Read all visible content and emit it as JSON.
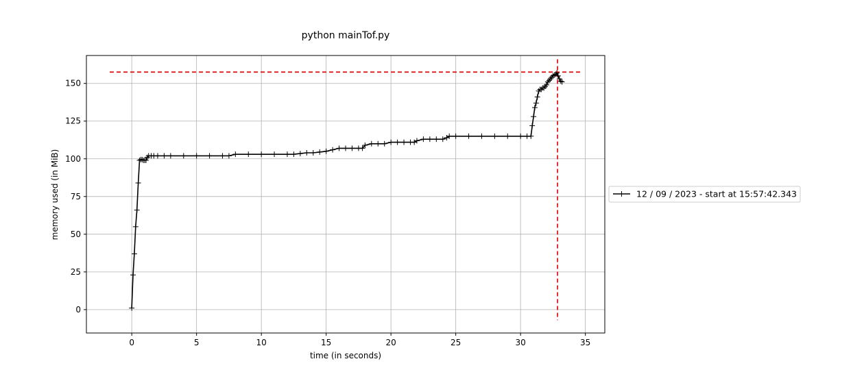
{
  "chart_data": {
    "type": "line",
    "title": "python mainTof.py",
    "xlabel": "time (in seconds)",
    "ylabel": "memory used (in MiB)",
    "xlim": [
      -3.5,
      36.5
    ],
    "ylim": [
      -15.5,
      168.5
    ],
    "xticks": [
      "0",
      "5",
      "10",
      "15",
      "20",
      "25",
      "30",
      "35"
    ],
    "yticks": [
      "0",
      "25",
      "50",
      "75",
      "100",
      "125",
      "150"
    ],
    "grid": true,
    "legend_position": "right-outside",
    "colors": {
      "series": "#000000",
      "peak": "#e01b1b",
      "grid": "#b0b0b0"
    },
    "series": [
      {
        "name": "12 / 09 / 2023 - start at 15:57:42.343",
        "marker": "plus",
        "x": [
          0,
          0.1,
          0.2,
          0.3,
          0.4,
          0.5,
          0.6,
          0.7,
          0.8,
          0.9,
          1.0,
          1.1,
          1.2,
          1.3,
          1.5,
          1.7,
          2.0,
          2.5,
          3.0,
          4.0,
          5.0,
          6.0,
          7.0,
          7.5,
          8.0,
          9.0,
          10.0,
          11.0,
          12.0,
          12.5,
          13.0,
          13.5,
          14.0,
          14.5,
          15.0,
          15.5,
          16.0,
          16.5,
          17.0,
          17.5,
          17.8,
          18.0,
          18.5,
          19.0,
          19.5,
          20.0,
          20.5,
          21.0,
          21.5,
          21.8,
          22.0,
          22.5,
          23.0,
          23.5,
          24.0,
          24.3,
          24.5,
          25.0,
          26.0,
          27.0,
          28.0,
          29.0,
          30.0,
          30.5,
          30.8,
          30.9,
          31.0,
          31.1,
          31.2,
          31.3,
          31.4,
          31.5,
          31.6,
          31.7,
          31.8,
          31.9,
          32.0,
          32.1,
          32.2,
          32.3,
          32.4,
          32.5,
          32.6,
          32.7,
          32.8,
          32.9,
          33.0,
          33.1,
          33.2
        ],
        "y": [
          1,
          23,
          37,
          55,
          66,
          84,
          99,
          99.5,
          99.5,
          99,
          99,
          99,
          101,
          102,
          102,
          102,
          102,
          102,
          102,
          102,
          102,
          102,
          102,
          102,
          103,
          103,
          103,
          103,
          103,
          103,
          103.5,
          104,
          104,
          104.5,
          105,
          106,
          107,
          107,
          107,
          107,
          107,
          109,
          110,
          110,
          110,
          111,
          111,
          111,
          111,
          111,
          112,
          113,
          113,
          113,
          113,
          114,
          115,
          115,
          115,
          115,
          115,
          115,
          115,
          115,
          115,
          122,
          128,
          134,
          137,
          141,
          145,
          146,
          146,
          147,
          147,
          148,
          149,
          151,
          152,
          153,
          154,
          155,
          155.5,
          156,
          157,
          155,
          153,
          151.5,
          151
        ]
      }
    ],
    "peak": {
      "x": 32.85,
      "y": 157.5
    }
  }
}
